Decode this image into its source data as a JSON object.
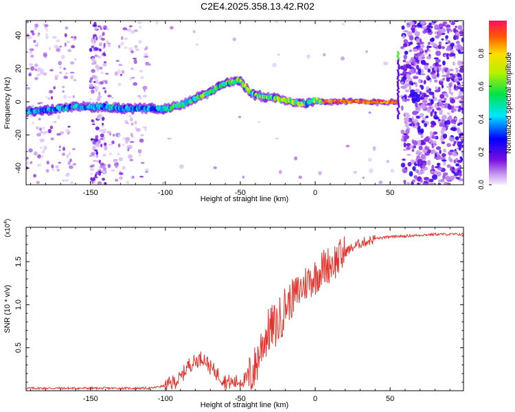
{
  "title": "C2E4.2025.358.13.42.R02",
  "chart_data": [
    {
      "type": "heatmap",
      "name": "spectrogram",
      "xlabel": "Height of straight line (km)",
      "ylabel": "Frequency (Hz)",
      "xlim": [
        -193,
        99
      ],
      "ylim": [
        -50,
        49
      ],
      "xticks": [
        -150,
        -100,
        -50,
        0,
        50
      ],
      "yticks": [
        -40,
        -20,
        0,
        20,
        40
      ],
      "ridge": {
        "x": [
          -193,
          -180,
          -170,
          -160,
          -150,
          -140,
          -130,
          -120,
          -110,
          -100,
          -90,
          -80,
          -70,
          -65,
          -60,
          -55,
          -50,
          -45,
          -40,
          -35,
          -30,
          -25,
          -20,
          -15,
          -10,
          -5,
          0,
          5,
          10,
          20,
          30,
          40,
          50,
          55
        ],
        "y": [
          -6,
          -5,
          -4,
          -3,
          -3,
          -3,
          -4,
          -4,
          -4,
          -4,
          -2,
          2,
          6,
          9,
          11,
          12,
          13,
          7,
          4,
          3,
          3,
          2,
          1,
          0,
          -1,
          -1,
          1,
          0,
          0,
          0,
          0,
          0,
          0,
          0
        ]
      },
      "colorbar": {
        "label": "Normalized spectral amplitude",
        "range": [
          0.0,
          1.0
        ],
        "ticks": [
          0.0,
          0.2,
          0.4,
          0.6,
          0.8
        ]
      }
    },
    {
      "type": "line",
      "name": "snr",
      "xlabel": "Height of straight line (km)",
      "ylabel": "SNR (10 * v/v)",
      "y_multiplier": "(x10",
      "y_multiplier_exp": "4",
      "y_multiplier_close": ")",
      "xlim": [
        -193,
        99
      ],
      "ylim": [
        0,
        1.9
      ],
      "xticks": [
        -150,
        -100,
        -50,
        0,
        50
      ],
      "yticks": [
        0.5,
        1.0,
        1.5
      ],
      "ytick_labels": [
        "0.5",
        "1.0",
        "1.5"
      ],
      "color": "#e8302a",
      "envelope": {
        "x": [
          -193,
          -150,
          -110,
          -100,
          -90,
          -85,
          -80,
          -75,
          -70,
          -65,
          -60,
          -55,
          -50,
          -45,
          -40,
          -35,
          -30,
          -25,
          -20,
          -15,
          -10,
          -5,
          0,
          5,
          10,
          15,
          20,
          30,
          40,
          50,
          60,
          70,
          80,
          90,
          99
        ],
        "y": [
          0.03,
          0.03,
          0.03,
          0.06,
          0.15,
          0.3,
          0.35,
          0.4,
          0.28,
          0.2,
          0.12,
          0.1,
          0.12,
          0.15,
          0.3,
          0.6,
          0.75,
          0.8,
          1.0,
          1.1,
          1.2,
          1.3,
          1.35,
          1.45,
          1.5,
          1.55,
          1.62,
          1.72,
          1.77,
          1.79,
          1.8,
          1.81,
          1.82,
          1.82,
          1.82
        ]
      }
    }
  ]
}
